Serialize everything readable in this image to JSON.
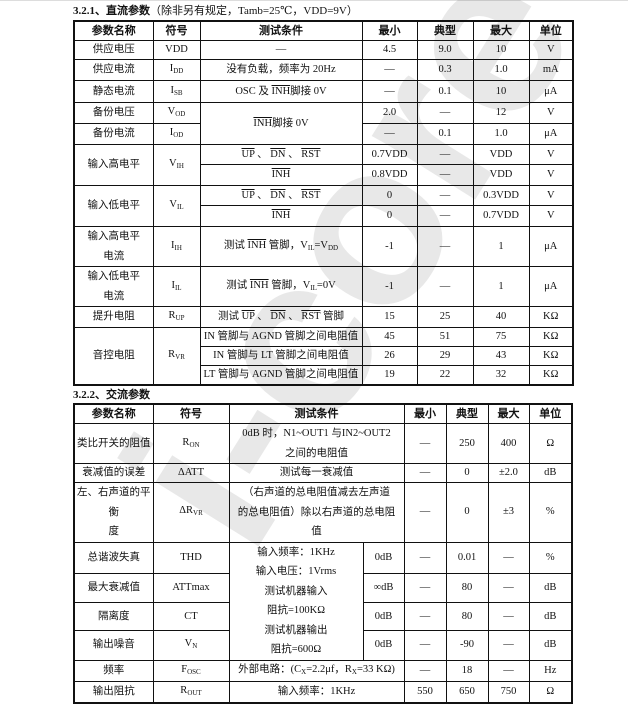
{
  "dc_section": {
    "title": "3.2.1、直流参数",
    "note": "（除非另有规定，Tamb=25℃，VDD=9V）"
  },
  "ac_section": {
    "title": "3.2.2、交流参数"
  },
  "watermark": "i-core",
  "dc_table": {
    "headers": [
      "参数名称",
      "符号",
      "测试条件",
      "最小",
      "典型",
      "最大",
      "单位"
    ],
    "rows": [
      [
        {
          "t": "供应电压"
        },
        {
          "t": "VDD"
        },
        {
          "t": "—"
        },
        {
          "t": "4.5"
        },
        {
          "t": "9.0"
        },
        {
          "t": "10"
        },
        {
          "t": "V"
        }
      ],
      [
        {
          "t": "供应电流"
        },
        {
          "t": [
            [
              "I"
            ],
            [
              "DD",
              "s"
            ]
          ]
        },
        {
          "t": "没有负载，频率为 20Hz"
        },
        {
          "t": "—"
        },
        {
          "t": "0.3"
        },
        {
          "t": "1.0"
        },
        {
          "t": "mA"
        }
      ],
      [
        {
          "t": "静态电流"
        },
        {
          "t": [
            [
              "I"
            ],
            [
              "SB",
              "s"
            ]
          ]
        },
        {
          "t": [
            [
              "OSC 及 "
            ],
            [
              "INH",
              "o"
            ],
            [
              "脚接 0V"
            ]
          ]
        },
        {
          "t": "—"
        },
        {
          "t": "0.1"
        },
        {
          "t": "10"
        },
        {
          "t": "μA"
        }
      ],
      [
        {
          "t": "备份电压"
        },
        {
          "t": [
            [
              "V"
            ],
            [
              "OD",
              "s"
            ]
          ]
        },
        {
          "t": [
            [
              "INH",
              "o"
            ],
            [
              "脚接 0V"
            ]
          ],
          "rs": 2
        },
        {
          "t": "2.0"
        },
        {
          "t": "—"
        },
        {
          "t": "12"
        },
        {
          "t": "V"
        }
      ],
      [
        {
          "t": "备份电流"
        },
        {
          "t": [
            [
              "I"
            ],
            [
              "OD",
              "s"
            ]
          ]
        },
        {
          "t": "—"
        },
        {
          "t": "0.1"
        },
        {
          "t": "1.0"
        },
        {
          "t": "μA"
        }
      ],
      [
        {
          "t": "输入高电平",
          "rs": 2
        },
        {
          "t": [
            [
              "V"
            ],
            [
              "IH",
              "s"
            ]
          ],
          "rs": 2
        },
        {
          "t": [
            [
              "UP",
              "o"
            ],
            [
              " 、 "
            ],
            [
              "DN",
              "o"
            ],
            [
              " 、 "
            ],
            [
              "RST",
              "o"
            ]
          ]
        },
        {
          "t": "0.7VDD"
        },
        {
          "t": "—"
        },
        {
          "t": "VDD"
        },
        {
          "t": "V"
        }
      ],
      [
        {
          "t": [
            [
              "INH",
              "o"
            ]
          ]
        },
        {
          "t": "0.8VDD"
        },
        {
          "t": "—"
        },
        {
          "t": "VDD"
        },
        {
          "t": "V"
        }
      ],
      [
        {
          "t": "输入低电平",
          "rs": 2
        },
        {
          "t": [
            [
              "V"
            ],
            [
              "IL",
              "s"
            ]
          ],
          "rs": 2
        },
        {
          "t": [
            [
              "UP",
              "o"
            ],
            [
              " 、 "
            ],
            [
              "DN",
              "o"
            ],
            [
              " 、 "
            ],
            [
              "RST",
              "o"
            ]
          ]
        },
        {
          "t": "0"
        },
        {
          "t": "—"
        },
        {
          "t": "0.3VDD"
        },
        {
          "t": "V"
        }
      ],
      [
        {
          "t": [
            [
              "INH",
              "o"
            ]
          ]
        },
        {
          "t": "0"
        },
        {
          "t": "—"
        },
        {
          "t": "0.7VDD"
        },
        {
          "t": "V"
        }
      ],
      [
        {
          "t": "输入高电平\n电流",
          "pl": 1
        },
        {
          "t": [
            [
              "I"
            ],
            [
              "IH",
              "s"
            ]
          ]
        },
        {
          "t": [
            [
              "测试 "
            ],
            [
              "INH",
              "o"
            ],
            [
              " 管脚，V"
            ],
            [
              "IL",
              "s"
            ],
            [
              "=V"
            ],
            [
              "DD",
              "s"
            ]
          ]
        },
        {
          "t": "-1"
        },
        {
          "t": "—"
        },
        {
          "t": "1"
        },
        {
          "t": "μA"
        }
      ],
      [
        {
          "t": "输入低电平\n电流",
          "pl": 1
        },
        {
          "t": [
            [
              "I"
            ],
            [
              "IL",
              "s"
            ]
          ]
        },
        {
          "t": [
            [
              "测试 "
            ],
            [
              "INH",
              "o"
            ],
            [
              " 管脚，V"
            ],
            [
              "IL",
              "s"
            ],
            [
              "=0V"
            ]
          ]
        },
        {
          "t": "-1"
        },
        {
          "t": "—"
        },
        {
          "t": "1"
        },
        {
          "t": "μA"
        }
      ],
      [
        {
          "t": "提升电阻"
        },
        {
          "t": [
            [
              "R"
            ],
            [
              "UP",
              "s"
            ]
          ]
        },
        {
          "t": [
            [
              "测试 "
            ],
            [
              "UP",
              "o"
            ],
            [
              " 、 "
            ],
            [
              "DN",
              "o"
            ],
            [
              " 、 "
            ],
            [
              "RST",
              "o"
            ],
            [
              " 管脚"
            ]
          ]
        },
        {
          "t": "15"
        },
        {
          "t": "25"
        },
        {
          "t": "40"
        },
        {
          "t": "KΩ"
        }
      ],
      [
        {
          "t": "音控电阻",
          "rs": 3
        },
        {
          "t": [
            [
              "R"
            ],
            [
              "VR",
              "s"
            ]
          ],
          "rs": 3
        },
        {
          "t": "IN 管脚与 AGND 管脚之间电阻值"
        },
        {
          "t": "45"
        },
        {
          "t": "51"
        },
        {
          "t": "75"
        },
        {
          "t": "KΩ"
        }
      ],
      [
        {
          "t": "IN 管脚与 LT 管脚之间电阻值"
        },
        {
          "t": "26"
        },
        {
          "t": "29"
        },
        {
          "t": "43"
        },
        {
          "t": "KΩ"
        }
      ],
      [
        {
          "t": "LT 管脚与 AGND 管脚之间电阻值"
        },
        {
          "t": "19"
        },
        {
          "t": "22"
        },
        {
          "t": "32"
        },
        {
          "t": "KΩ"
        }
      ]
    ]
  },
  "ac_table": {
    "headers": [
      {
        "t": "参数名称"
      },
      {
        "t": "符号"
      },
      {
        "t": "测试条件",
        "cs": 2
      },
      {
        "t": "最小"
      },
      {
        "t": "典型"
      },
      {
        "t": "最大"
      },
      {
        "t": "单位"
      }
    ],
    "rows": [
      [
        {
          "t": "类比开关的阻值"
        },
        {
          "t": [
            [
              "R"
            ],
            [
              "ON",
              "s"
            ]
          ]
        },
        {
          "t": "0dB 时，N1~OUT1 与IN2~OUT2\n之间的电阻值",
          "cs": 2,
          "pl": 1
        },
        {
          "t": "—"
        },
        {
          "t": "250"
        },
        {
          "t": "400"
        },
        {
          "t": "Ω"
        }
      ],
      [
        {
          "t": "衰减值的误差"
        },
        {
          "t": "ΔATT"
        },
        {
          "t": "测试每一衰减值",
          "cs": 2
        },
        {
          "t": "—"
        },
        {
          "t": "0"
        },
        {
          "t": "±2.0"
        },
        {
          "t": "dB"
        }
      ],
      [
        {
          "t": "左、右声道的平衡\n度",
          "pl": 1
        },
        {
          "t": [
            [
              "ΔR"
            ],
            [
              "VR",
              "s"
            ]
          ]
        },
        {
          "t": "（右声道的总电阻值减去左声道\n的总电阻值）除以右声道的总电阻\n值",
          "cs": 2,
          "pl": 1
        },
        {
          "t": "—"
        },
        {
          "t": "0"
        },
        {
          "t": "±3"
        },
        {
          "t": "%"
        }
      ],
      [
        {
          "t": "总谐波失真"
        },
        {
          "t": "THD"
        },
        {
          "t": "输入频率：1KHz\n输入电压：1Vrms\n测试机器输入\n阻抗=100KΩ\n测试机器输出\n阻抗=600Ω",
          "rs": 4,
          "pl": 1
        },
        {
          "t": "0dB"
        },
        {
          "t": "—"
        },
        {
          "t": "0.01"
        },
        {
          "t": "—"
        },
        {
          "t": "%"
        }
      ],
      [
        {
          "t": "最大衰减值"
        },
        {
          "t": "ATTmax"
        },
        {
          "t": "∞dB"
        },
        {
          "t": "—"
        },
        {
          "t": "80"
        },
        {
          "t": "—"
        },
        {
          "t": "dB"
        }
      ],
      [
        {
          "t": "隔离度"
        },
        {
          "t": "CT"
        },
        {
          "t": "0dB"
        },
        {
          "t": "—"
        },
        {
          "t": "80"
        },
        {
          "t": "—"
        },
        {
          "t": "dB"
        }
      ],
      [
        {
          "t": "输出噪音"
        },
        {
          "t": [
            [
              "V"
            ],
            [
              "N",
              "s"
            ]
          ]
        },
        {
          "t": "0dB"
        },
        {
          "t": "—"
        },
        {
          "t": "-90"
        },
        {
          "t": "—"
        },
        {
          "t": "dB"
        }
      ],
      [
        {
          "t": "频率"
        },
        {
          "t": [
            [
              "F"
            ],
            [
              "OSC",
              "s"
            ]
          ]
        },
        {
          "t": [
            [
              "外部电路：(C"
            ],
            [
              "X",
              "s"
            ],
            [
              "=2.2μf，R"
            ],
            [
              "X",
              "s"
            ],
            [
              "=33 KΩ)"
            ]
          ],
          "cs": 2
        },
        {
          "t": "—"
        },
        {
          "t": "18"
        },
        {
          "t": "—"
        },
        {
          "t": "Hz"
        }
      ],
      [
        {
          "t": "输出阻抗"
        },
        {
          "t": [
            [
              "R"
            ],
            [
              "OUT",
              "s"
            ]
          ]
        },
        {
          "t": "输入频率：1KHz",
          "cs": 2
        },
        {
          "t": "550"
        },
        {
          "t": "650"
        },
        {
          "t": "750"
        },
        {
          "t": "Ω"
        }
      ]
    ]
  }
}
